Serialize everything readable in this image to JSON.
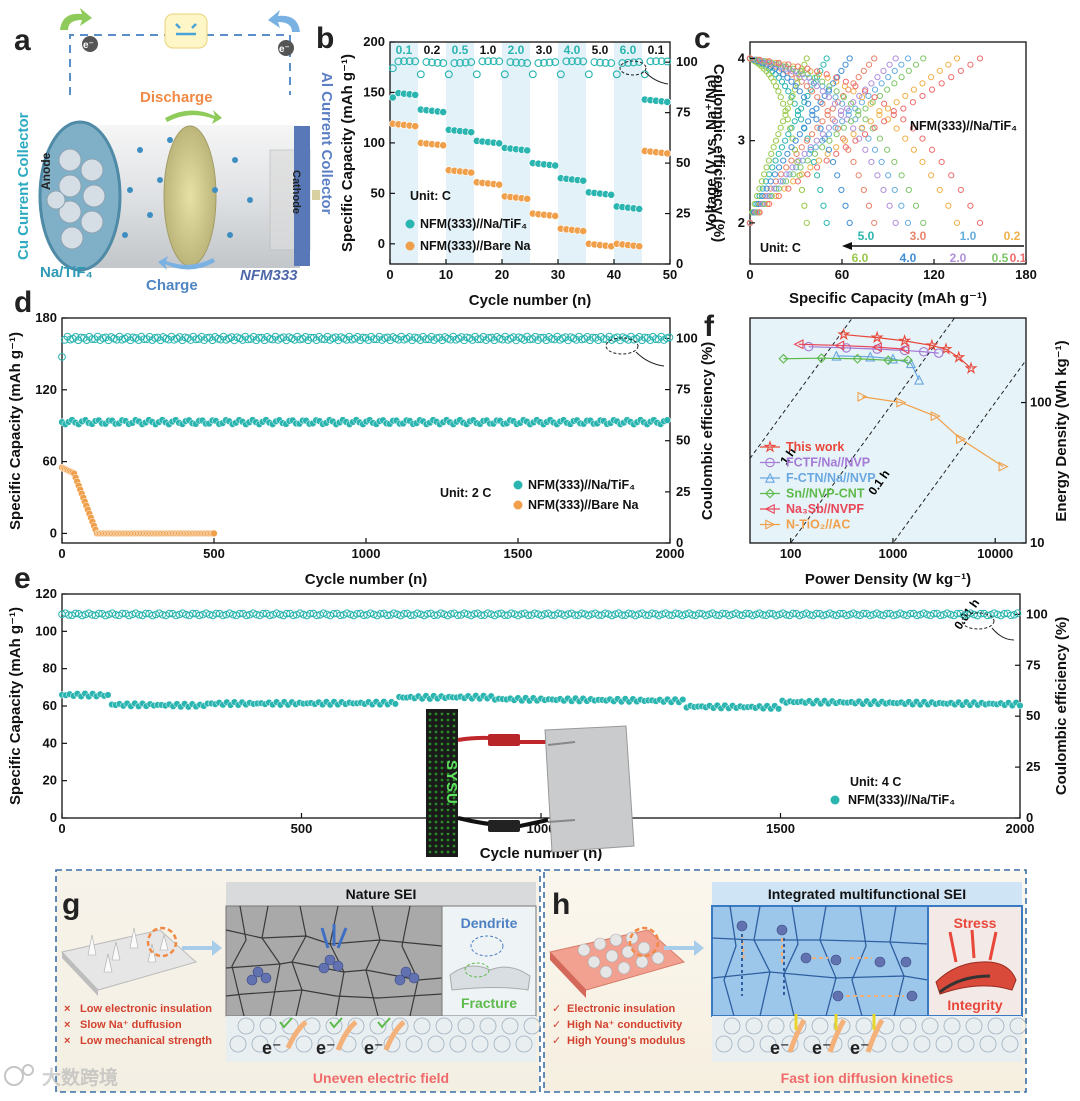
{
  "panel_labels": {
    "a": "a",
    "b": "b",
    "c": "c",
    "d": "d",
    "e": "e",
    "f": "f",
    "g": "g",
    "h": "h"
  },
  "panel_a": {
    "electron": "e⁻",
    "cu_collector": "Cu Current Collector",
    "al_collector": "Al Current Collector",
    "anode": "Anode",
    "cathode": "Cathode",
    "discharge": "Discharge",
    "charge": "Charge",
    "anode_material": "Na/TiF₄",
    "cathode_material": "NFM333"
  },
  "chart_b": {
    "type": "scatter",
    "xlabel": "Cycle number (n)",
    "ylabel": "Specific Capacity (mAh g⁻¹)",
    "y2label": "Coulombic efficiency (%)",
    "xlim": [
      0,
      50
    ],
    "ylim": [
      -20,
      200
    ],
    "y2lim": [
      0,
      110
    ],
    "xticks": [
      "0",
      "10",
      "20",
      "30",
      "40",
      "50"
    ],
    "yticks": [
      "0",
      "50",
      "100",
      "150",
      "200"
    ],
    "y2ticks": [
      "0",
      "25",
      "50",
      "75",
      "100"
    ],
    "rates": [
      "0.1",
      "0.2",
      "0.5",
      "1.0",
      "2.0",
      "3.0",
      "4.0",
      "5.0",
      "6.0",
      "0.1"
    ],
    "unit": "Unit: C",
    "series": [
      {
        "name": "NFM(333)//Na/TiF₄",
        "color": "#2bb5b0",
        "levels": [
          150,
          133,
          113,
          102,
          95,
          80,
          65,
          51,
          37,
          143
        ]
      },
      {
        "name": "NFM(333)//Bare Na",
        "color": "#f0a04b",
        "levels": [
          119,
          100,
          73,
          61,
          47,
          30,
          15,
          0,
          0,
          92
        ]
      }
    ],
    "ce": 100
  },
  "chart_c": {
    "type": "line",
    "xlabel": "Specific Capacity (mAh g⁻¹)",
    "ylabel": "Voltage (V vs. Na⁺/Na)",
    "xlim": [
      0,
      180
    ],
    "ylim": [
      1.5,
      4.2
    ],
    "xticks": [
      "0",
      "60",
      "120",
      "180"
    ],
    "yticks": [
      "2",
      "3",
      "4"
    ],
    "title": "NFM(333)//Na/TiF₄",
    "unit": "Unit: C",
    "rates": [
      {
        "label": "5.0",
        "color": "#2bb5b0",
        "capacity": 50
      },
      {
        "label": "3.0",
        "color": "#e8826a",
        "capacity": 81
      },
      {
        "label": "1.0",
        "color": "#66aee0",
        "capacity": 103
      },
      {
        "label": "0.2",
        "color": "#f0b048",
        "capacity": 135
      },
      {
        "label": "6.0",
        "color": "#99c84a",
        "capacity": 37
      },
      {
        "label": "4.0",
        "color": "#3f8ed6",
        "capacity": 65
      },
      {
        "label": "2.0",
        "color": "#b08fd8",
        "capacity": 95
      },
      {
        "label": "0.5",
        "color": "#7fc66a",
        "capacity": 113
      },
      {
        "label": "0.1",
        "color": "#ef6c6c",
        "capacity": 150
      }
    ]
  },
  "chart_d": {
    "type": "scatter",
    "xlabel": "Cycle number (n)",
    "ylabel": "Specific Capacity (mAh g⁻¹)",
    "y2label": "Coulombic efficiency (%)",
    "xlim": [
      0,
      2000
    ],
    "ylim": [
      -8,
      180
    ],
    "y2lim": [
      0,
      110
    ],
    "xticks": [
      "0",
      "500",
      "1000",
      "1500",
      "2000"
    ],
    "yticks": [
      "0",
      "60",
      "120",
      "180"
    ],
    "y2ticks": [
      "0",
      "25",
      "50",
      "75",
      "100"
    ],
    "unit": "Unit: 2 C",
    "series": [
      {
        "name": "NFM(333)//Na/TiF₄",
        "color": "#2bb5b0",
        "capacity": 93
      },
      {
        "name": "NFM(333)//Bare Na",
        "color": "#f0a04b",
        "start": 55,
        "end_cycle": 500
      }
    ],
    "ce": 100
  },
  "chart_e": {
    "type": "scatter",
    "xlabel": "Cycle number (n)",
    "ylabel": "Specific Capacity (mAh g⁻¹)",
    "y2label": "Coulombic efficiency (%)",
    "xlim": [
      0,
      2000
    ],
    "ylim": [
      0,
      120
    ],
    "y2lim": [
      0,
      110
    ],
    "xticks": [
      "0",
      "500",
      "1000",
      "1500",
      "2000"
    ],
    "yticks": [
      "0",
      "20",
      "40",
      "60",
      "80",
      "100",
      "120"
    ],
    "y2ticks": [
      "0",
      "25",
      "50",
      "75",
      "100"
    ],
    "unit": "Unit: 4 C",
    "series": [
      {
        "name": "NFM(333)//Na/TiF₄",
        "color": "#2bb5b0",
        "capacity_start": 66,
        "capacity_end": 61
      }
    ],
    "ce": 100,
    "display_text": "SYSU"
  },
  "chart_f": {
    "type": "line",
    "xlabel": "Power Density (W kg⁻¹)",
    "ylabel": "Energy Density (Wh kg⁻¹)",
    "xscale": "log",
    "yscale": "log",
    "xlim": [
      40,
      20000
    ],
    "ylim": [
      10,
      400
    ],
    "xticks": [
      "100",
      "1000",
      "10000"
    ],
    "yticks": [
      "10",
      "100"
    ],
    "time_lines": [
      "1 h",
      "0.1 h",
      "0.01 h"
    ],
    "series": [
      {
        "name": "This work",
        "color": "#e8473a",
        "marker": "star",
        "x": [
          330,
          700,
          1300,
          2400,
          3300,
          4400,
          5800
        ],
        "y": [
          305,
          290,
          275,
          255,
          240,
          210,
          175
        ]
      },
      {
        "name": "FCTF/Na//NVP",
        "color": "#a57ad6",
        "marker": "circle",
        "x": [
          150,
          350,
          700,
          1300,
          2000,
          2800
        ],
        "y": [
          250,
          245,
          240,
          235,
          230,
          225
        ]
      },
      {
        "name": "F-CTN/Na//NVP",
        "color": "#6ba8e0",
        "marker": "triangle",
        "x": [
          280,
          600,
          1000,
          1500,
          1800
        ],
        "y": [
          215,
          212,
          205,
          190,
          145
        ]
      },
      {
        "name": "Sn//NVP-CNT",
        "color": "#5fba4c",
        "marker": "diamond",
        "x": [
          85,
          200,
          450,
          900,
          1400
        ],
        "y": [
          205,
          207,
          205,
          200,
          200
        ]
      },
      {
        "name": "Na₃Sb//NVPF",
        "color": "#e8475a",
        "marker": "ltriangle",
        "x": [
          120,
          300,
          700,
          1300
        ],
        "y": [
          260,
          255,
          248,
          240
        ]
      },
      {
        "name": "N-TiO₂//AC",
        "color": "#f0a04b",
        "marker": "rtriangle",
        "x": [
          500,
          1200,
          2600,
          4600,
          12000
        ],
        "y": [
          110,
          100,
          80,
          55,
          35
        ]
      }
    ]
  },
  "panel_g": {
    "title": "Nature SEI",
    "dendrite": "Dendrite",
    "fracture": "Fracture",
    "bullets": [
      "Low electronic insulation",
      "Slow Na⁺ duffusion",
      "Low mechanical strength"
    ],
    "bullet_mark": "×",
    "electron": "e⁻",
    "footer": "Uneven electric field"
  },
  "panel_h": {
    "title": "Integrated multifunctional SEI",
    "stress": "Stress",
    "integrity": "Integrity",
    "bullets": [
      "Electronic insulation",
      "High Na⁺ conductivity",
      "High Young's modulus"
    ],
    "bullet_mark": "✓",
    "electron": "e⁻",
    "footer": "Fast ion diffusion kinetics"
  },
  "watermark": "大数跨境",
  "colors": {
    "teal": "#2bb5b0",
    "orange": "#f0a04b",
    "red": "#e8473a",
    "blue_frame": "#3a6fa8"
  }
}
